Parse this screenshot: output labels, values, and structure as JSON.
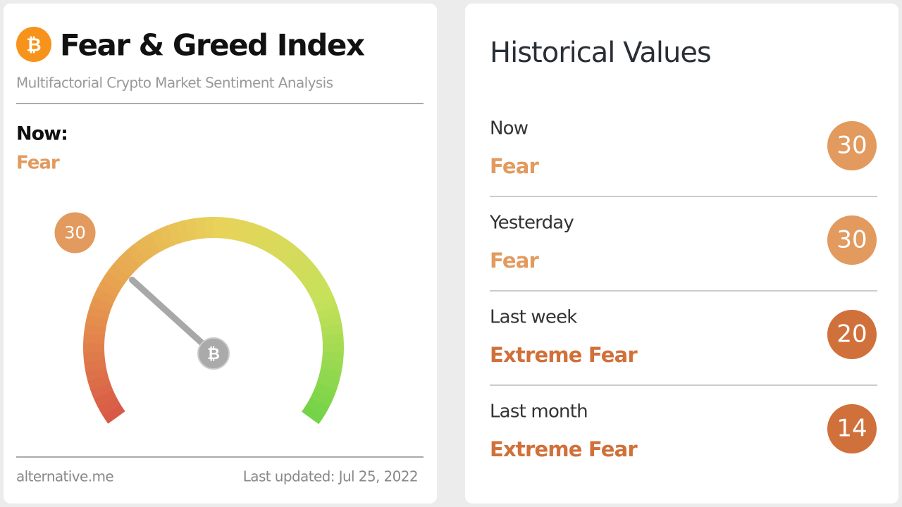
{
  "left_card": {
    "title": "Fear & Greed Index",
    "subtitle": "Multifactorial Crypto Market Sentiment Analysis",
    "now_label": "Now:",
    "now_classification": "Fear",
    "now_color": "#e29a5e",
    "gauge": {
      "value": 30,
      "range": [
        0,
        100
      ],
      "color": "#e29a5e"
    },
    "source": "alternative.me",
    "last_updated": "Last updated: Jul 25, 2022"
  },
  "right_card": {
    "title": "Historical Values",
    "rows": [
      {
        "period": "Now",
        "classification": "Fear",
        "value": 30,
        "color": "#e29a5e"
      },
      {
        "period": "Yesterday",
        "classification": "Fear",
        "value": 30,
        "color": "#e29a5e"
      },
      {
        "period": "Last week",
        "classification": "Extreme Fear",
        "value": 20,
        "color": "#d0703a"
      },
      {
        "period": "Last month",
        "classification": "Extreme Fear",
        "value": 14,
        "color": "#d0703a"
      }
    ]
  }
}
